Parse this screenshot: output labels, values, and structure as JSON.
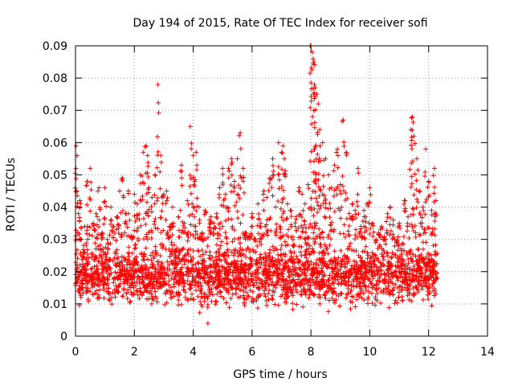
{
  "chart_data": {
    "type": "scatter",
    "title": "Day 194 of 2015, Rate Of TEC Index for receiver sofi",
    "xlabel": "GPS time / hours",
    "ylabel": "ROTI / TECUs",
    "xlim": [
      0,
      14
    ],
    "ylim": [
      0,
      0.09
    ],
    "xticks": [
      0,
      2,
      4,
      6,
      8,
      10,
      12,
      14
    ],
    "yticks": [
      0,
      0.01,
      0.02,
      0.03,
      0.04,
      0.05,
      0.06,
      0.07,
      0.08,
      0.09
    ],
    "xtick_labels": [
      "0",
      "2",
      "4",
      "6",
      "8",
      "10",
      "12",
      "14"
    ],
    "ytick_labels": [
      "0",
      "0.01",
      "0.02",
      "0.03",
      "0.04",
      "0.05",
      "0.06",
      "0.07",
      "0.08",
      "0.09"
    ],
    "grid": true,
    "legend": "none",
    "marker": "plus",
    "color": "#ff0000",
    "series": [
      {
        "x": [
          0.02,
          0.05,
          0.1,
          0.15,
          0.2,
          0.3,
          0.4,
          0.5,
          0.6,
          0.7,
          0.8,
          0.9,
          1.0,
          1.1,
          1.2,
          1.3,
          1.4,
          1.5,
          1.6,
          1.7,
          1.8,
          1.9,
          2.0,
          2.1,
          2.2,
          2.3,
          2.4,
          2.45,
          2.5,
          2.6,
          2.7,
          2.8,
          2.9,
          3.0,
          3.1,
          3.2,
          3.3,
          3.4,
          3.5,
          3.6,
          3.7,
          3.8,
          3.9,
          4.0,
          4.05,
          4.1,
          4.2,
          4.3,
          4.4,
          4.5,
          4.55,
          4.6,
          4.7,
          4.8,
          4.9,
          5.0,
          5.1,
          5.2,
          5.3,
          5.4,
          5.5,
          5.6,
          5.7,
          5.8,
          5.9,
          6.0,
          6.1,
          6.2,
          6.3,
          6.4,
          6.5,
          6.6,
          6.7,
          6.8,
          6.9,
          7.0,
          7.05,
          7.1,
          7.2,
          7.3,
          7.4,
          7.5,
          7.6,
          7.7,
          7.8,
          7.9,
          8.0,
          8.05,
          8.1,
          8.12,
          8.15,
          8.2,
          8.25,
          8.3,
          8.4,
          8.5,
          8.6,
          8.7,
          8.8,
          8.9,
          9.0,
          9.1,
          9.2,
          9.3,
          9.4,
          9.5,
          9.6,
          9.7,
          9.8,
          9.9,
          10.0,
          10.1,
          10.2,
          10.3,
          10.4,
          10.5,
          10.6,
          10.7,
          10.8,
          10.9,
          11.0,
          11.1,
          11.2,
          11.3,
          11.4,
          11.45,
          11.5,
          11.6,
          11.7,
          11.8,
          11.9,
          12.0,
          12.1,
          12.2,
          12.25
        ],
        "y": [
          0.059,
          0.045,
          0.038,
          0.042,
          0.03,
          0.026,
          0.048,
          0.052,
          0.035,
          0.038,
          0.046,
          0.032,
          0.046,
          0.027,
          0.04,
          0.034,
          0.037,
          0.045,
          0.049,
          0.038,
          0.045,
          0.031,
          0.044,
          0.041,
          0.05,
          0.057,
          0.059,
          0.056,
          0.046,
          0.043,
          0.05,
          0.078,
          0.056,
          0.044,
          0.045,
          0.034,
          0.04,
          0.026,
          0.037,
          0.053,
          0.035,
          0.042,
          0.065,
          0.056,
          0.048,
          0.057,
          0.04,
          0.032,
          0.039,
          0.004,
          0.036,
          0.037,
          0.035,
          0.038,
          0.046,
          0.052,
          0.044,
          0.052,
          0.055,
          0.048,
          0.055,
          0.063,
          0.052,
          0.032,
          0.031,
          0.038,
          0.03,
          0.041,
          0.035,
          0.045,
          0.043,
          0.049,
          0.055,
          0.04,
          0.06,
          0.057,
          0.059,
          0.055,
          0.041,
          0.039,
          0.028,
          0.037,
          0.046,
          0.044,
          0.041,
          0.047,
          0.09,
          0.088,
          0.085,
          0.078,
          0.077,
          0.075,
          0.072,
          0.064,
          0.06,
          0.055,
          0.05,
          0.046,
          0.053,
          0.058,
          0.047,
          0.067,
          0.057,
          0.038,
          0.041,
          0.039,
          0.052,
          0.034,
          0.039,
          0.041,
          0.046,
          0.035,
          0.029,
          0.032,
          0.034,
          0.03,
          0.038,
          0.04,
          0.036,
          0.029,
          0.035,
          0.021,
          0.042,
          0.037,
          0.064,
          0.068,
          0.062,
          0.055,
          0.045,
          0.04,
          0.058,
          0.048,
          0.039,
          0.052,
          0.042
        ]
      }
    ],
    "dense_band": {
      "x_range": [
        0.0,
        12.3
      ],
      "y_center": 0.019,
      "y_spread": 0.009
    }
  }
}
